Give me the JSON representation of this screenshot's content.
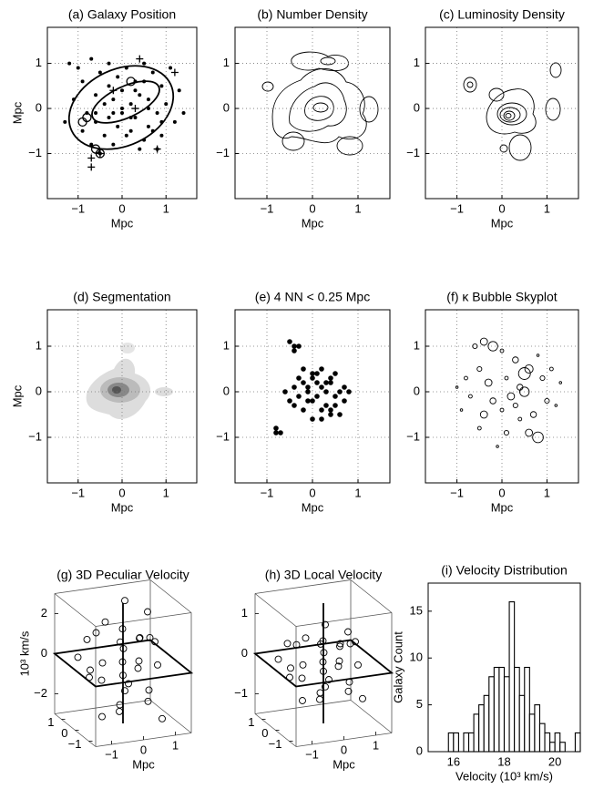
{
  "chart_data": [
    {
      "type": "scatter",
      "title": "(a)  Galaxy  Position",
      "xlabel": "Mpc",
      "ylabel": "Mpc",
      "xlim": [
        -1.7,
        1.7
      ],
      "ylim": [
        -2,
        1.8
      ],
      "xticks": [
        {
          "value": -1,
          "label": "−1"
        },
        0,
        1
      ],
      "yticks": [
        {
          "value": -1,
          "label": "−1"
        },
        0,
        1
      ],
      "grid": true,
      "series": [
        {
          "marker": "dot",
          "color": "#000000",
          "x": [
            -1.2,
            -1.0,
            -0.9,
            -0.7,
            -0.5,
            -0.3,
            -0.1,
            0.1,
            0.3,
            0.5,
            0.7,
            0.9,
            1.1,
            1.3,
            -1.1,
            -0.8,
            -0.6,
            -0.4,
            -0.2,
            0.0,
            0.2,
            0.4,
            0.6,
            0.8,
            1.0,
            1.2,
            -0.9,
            -0.6,
            -0.3,
            0.0,
            0.3,
            0.6,
            0.9,
            -0.7,
            -0.4,
            -0.1,
            0.2,
            0.5,
            0.8,
            -0.5,
            -0.2,
            0.1,
            0.4,
            0.7,
            -0.3,
            0.0,
            0.3,
            -0.6,
            0.5,
            1.4,
            -1.3,
            0.9,
            -0.2,
            0.2,
            0.6
          ],
          "y": [
            1.0,
            0.9,
            0.6,
            1.1,
            0.8,
            1.0,
            0.7,
            0.9,
            0.6,
            1.0,
            0.8,
            0.5,
            0.9,
            0.4,
            0.2,
            -0.1,
            0.3,
            0.1,
            0.2,
            -0.1,
            0.1,
            0.3,
            0.2,
            -0.1,
            0.1,
            -0.3,
            -0.5,
            -0.3,
            -0.2,
            0.0,
            -0.2,
            -0.4,
            -0.6,
            -0.8,
            -0.6,
            -0.4,
            -0.5,
            -0.7,
            -0.9,
            -1.0,
            -0.8,
            -0.6,
            -0.9,
            -0.5,
            0.5,
            0.4,
            0.4,
            -0.1,
            0.6,
            -0.1,
            -0.3,
            -0.3,
            -0.1,
            -0.2,
            0.0
          ]
        },
        {
          "marker": "plus",
          "color": "#000000",
          "x": [
            0.4,
            -0.2,
            -0.5,
            0.3,
            -0.7,
            1.2,
            0.8,
            -0.7
          ],
          "y": [
            1.1,
            0.4,
            -1.0,
            0.0,
            -1.1,
            0.8,
            -0.9,
            -1.3
          ]
        },
        {
          "marker": "circle",
          "color": "#000000",
          "x": [
            -0.9,
            -0.8,
            -0.5,
            -0.6,
            0.2
          ],
          "y": [
            -0.3,
            -0.2,
            -1.0,
            -0.9,
            0.6
          ]
        }
      ]
    },
    {
      "type": "contour",
      "title": "(b)  Number Density",
      "xlabel": "Mpc",
      "xlim": [
        -1.7,
        1.7
      ],
      "ylim": [
        -2,
        1.8
      ],
      "xticks": [
        {
          "value": -1,
          "label": "−1"
        },
        0,
        1
      ],
      "yticks": [
        {
          "value": -1,
          "label": "−1"
        },
        0,
        1
      ],
      "grid": true
    },
    {
      "type": "contour",
      "title": "(c)  Luminosity Density",
      "xlabel": "Mpc",
      "xlim": [
        -1.7,
        1.7
      ],
      "ylim": [
        -2,
        1.8
      ],
      "xticks": [
        {
          "value": -1,
          "label": "−1"
        },
        0,
        1
      ],
      "yticks": [
        {
          "value": -1,
          "label": "−1"
        },
        0,
        1
      ],
      "grid": true
    },
    {
      "type": "image",
      "title": "(d)  Segmentation",
      "xlabel": "Mpc",
      "ylabel": "Mpc",
      "xlim": [
        -1.7,
        1.7
      ],
      "ylim": [
        -2,
        1.8
      ],
      "xticks": [
        {
          "value": -1,
          "label": "−1"
        },
        0,
        1
      ],
      "yticks": [
        {
          "value": -1,
          "label": "−1"
        },
        0,
        1
      ],
      "grid": true
    },
    {
      "type": "scatter",
      "title": "(e)  4 NN < 0.25 Mpc",
      "xlabel": "Mpc",
      "xlim": [
        -1.7,
        1.7
      ],
      "ylim": [
        -2,
        1.8
      ],
      "xticks": [
        {
          "value": -1,
          "label": "−1"
        },
        0,
        1
      ],
      "yticks": [
        {
          "value": -1,
          "label": "−1"
        },
        0,
        1
      ],
      "grid": true,
      "series": [
        {
          "marker": "bigdot",
          "color": "#000000",
          "x": [
            -0.5,
            -0.4,
            -0.3,
            -0.4,
            -0.8,
            -0.7,
            -0.8,
            -0.6,
            -0.4,
            -0.3,
            -0.2,
            -0.1,
            0.0,
            0.1,
            0.2,
            0.3,
            0.4,
            0.5,
            0.6,
            0.7,
            0.8,
            -0.5,
            -0.3,
            -0.1,
            0.1,
            0.3,
            0.5,
            0.7,
            -0.4,
            -0.2,
            0.0,
            0.2,
            0.4,
            0.6,
            -0.2,
            0.0,
            0.2,
            0.4,
            0.3,
            0.1,
            -0.1,
            0.5,
            0.0,
            0.2,
            0.4
          ],
          "y": [
            1.1,
            1.0,
            1.0,
            0.9,
            -0.8,
            -0.9,
            -0.9,
            0.0,
            0.1,
            -0.1,
            0.2,
            0.0,
            0.3,
            -0.1,
            0.1,
            0.0,
            0.2,
            -0.1,
            0.0,
            -0.2,
            0.0,
            -0.2,
            0.3,
            -0.2,
            0.4,
            -0.3,
            0.4,
            0.1,
            -0.3,
            -0.4,
            -0.2,
            -0.4,
            -0.5,
            -0.5,
            0.5,
            0.4,
            0.5,
            0.3,
            0.2,
            0.2,
            0.1,
            -0.3,
            -0.6,
            -0.6,
            -0.4
          ]
        }
      ]
    },
    {
      "type": "scatter",
      "title": "(f)  κ Bubble Skyplot",
      "xlabel": "Mpc",
      "xlim": [
        -1.7,
        1.7
      ],
      "ylim": [
        -2,
        1.8
      ],
      "xticks": [
        {
          "value": -1,
          "label": "−1"
        },
        0,
        1
      ],
      "yticks": [
        {
          "value": -1,
          "label": "−1"
        },
        0,
        1
      ],
      "grid": true,
      "series": [
        {
          "marker": "bubble",
          "color": "#000000",
          "x": [
            -0.6,
            -0.4,
            -0.2,
            0.0,
            0.3,
            0.5,
            0.8,
            1.1,
            -1.0,
            -0.8,
            -0.5,
            -0.3,
            0.1,
            0.4,
            0.6,
            0.9,
            1.3,
            -0.7,
            -0.2,
            0.2,
            0.5,
            1.0,
            -0.9,
            -0.4,
            0.0,
            0.3,
            0.7,
            1.2,
            -0.5,
            0.1,
            0.6,
            0.8,
            -0.1,
            0.4
          ],
          "y": [
            1.0,
            1.1,
            1.0,
            0.9,
            0.7,
            0.4,
            0.8,
            0.5,
            0.1,
            0.3,
            0.5,
            0.2,
            0.3,
            0.1,
            0.5,
            0.3,
            0.2,
            -0.1,
            -0.2,
            -0.1,
            0.0,
            -0.2,
            -0.4,
            -0.5,
            -0.4,
            -0.3,
            -0.5,
            -0.3,
            -0.8,
            -0.9,
            -0.9,
            -1.0,
            -1.2,
            -0.6
          ],
          "sizes": [
            4,
            6,
            8,
            3,
            5,
            10,
            2,
            3,
            2,
            3,
            4,
            6,
            3,
            5,
            7,
            4,
            2,
            3,
            5,
            6,
            8,
            4,
            2,
            6,
            3,
            4,
            5,
            2,
            3,
            4,
            6,
            9,
            2,
            3
          ]
        }
      ]
    },
    {
      "type": "scatter3d",
      "title": "(g) 3D Peculiar Velocity",
      "xlabel": "Mpc",
      "zlabel": "10³ km/s",
      "xlim": [
        -1.5,
        1.5
      ],
      "ylim": [
        -1.5,
        1.5
      ],
      "zlim": [
        -3,
        3
      ],
      "xticks": [
        {
          "value": -1,
          "label": "−1"
        },
        0,
        1
      ],
      "yticks": [
        {
          "value": -1,
          "label": "−1"
        },
        0,
        1
      ],
      "zticks": [
        {
          "value": -2,
          "label": "−2"
        },
        0,
        2
      ],
      "x": [
        -1.2,
        -0.8,
        -0.5,
        -0.2,
        0.1,
        0.4,
        0.7,
        1.0,
        1.3,
        -1.0,
        -0.6,
        -0.3,
        0.0,
        0.3,
        0.6,
        0.9,
        -1.1,
        -0.7,
        -0.4,
        0.2,
        0.5,
        0.8,
        1.1,
        -0.9,
        -0.1,
        0.4,
        0.0,
        -0.5,
        0.6,
        0.3
      ],
      "y": [
        0.5,
        -0.3,
        0.8,
        -0.6,
        0.2,
        -0.9,
        0.4,
        -0.2,
        0.7,
        -0.8,
        0.1,
        0.6,
        -0.4,
        0.9,
        -0.5,
        0.3,
        -0.1,
        1.0,
        -0.7,
        0.5,
        0.0,
        -1.0,
        0.6,
        0.3,
        -0.2,
        0.8,
        0.0,
        -0.9,
        0.2,
        -0.4
      ],
      "z": [
        0.3,
        -0.5,
        1.2,
        -1.0,
        0.6,
        -1.5,
        0.9,
        -0.2,
        0.4,
        -2.0,
        0.1,
        1.8,
        -0.8,
        0.5,
        -1.2,
        2.2,
        -0.4,
        0.8,
        -1.6,
        1.4,
        0.0,
        -2.4,
        0.7,
        -0.3,
        0.2,
        2.6,
        -0.6,
        -1.8,
        1.0,
        -0.1
      ]
    },
    {
      "type": "scatter3d",
      "title": "(h) 3D Local Velocity",
      "xlabel": "Mpc",
      "xlim": [
        -1.5,
        1.5
      ],
      "ylim": [
        -1.5,
        1.5
      ],
      "zlim": [
        -1.5,
        1.5
      ],
      "xticks": [
        {
          "value": -1,
          "label": "−1"
        },
        0,
        1
      ],
      "yticks": [
        {
          "value": -1,
          "label": "−1"
        },
        0,
        1
      ],
      "zticks": [
        {
          "value": -1,
          "label": "−1"
        },
        0,
        1
      ],
      "x": [
        -1.2,
        -0.8,
        -0.5,
        -0.2,
        0.1,
        0.4,
        0.7,
        1.0,
        1.3,
        -1.0,
        -0.6,
        -0.3,
        0.0,
        0.3,
        0.6,
        0.9,
        -1.1,
        -0.7,
        -0.4,
        0.2,
        0.5,
        0.8,
        1.1,
        -0.9,
        -0.1,
        0.4,
        0.0,
        -0.5,
        0.6,
        0.3
      ],
      "y": [
        0.5,
        -0.3,
        0.8,
        -0.6,
        0.2,
        -0.9,
        0.4,
        -0.2,
        0.7,
        -0.8,
        0.1,
        0.6,
        -0.4,
        0.9,
        -0.5,
        0.3,
        -0.1,
        1.0,
        -0.7,
        0.5,
        0.0,
        -1.0,
        0.6,
        0.3,
        -0.2,
        0.8,
        0.0,
        -0.9,
        0.2,
        -0.4
      ],
      "z": [
        0.1,
        -0.2,
        0.3,
        -0.4,
        0.2,
        -0.5,
        0.3,
        -0.1,
        0.2,
        -0.6,
        0.0,
        0.5,
        -0.3,
        0.2,
        -0.4,
        0.6,
        -0.2,
        0.3,
        -0.5,
        0.4,
        0.0,
        -0.7,
        0.2,
        -0.1,
        0.1,
        0.7,
        -0.2,
        -0.6,
        0.3,
        0.0
      ]
    },
    {
      "type": "histogram",
      "title": "(i) Velocity Distribution",
      "xlabel": "Velocity (10³ km/s)",
      "ylabel": "Galaxy Count",
      "xlim": [
        15,
        21
      ],
      "ylim": [
        0,
        18
      ],
      "xticks": [
        16,
        18,
        20
      ],
      "yticks": [
        0,
        5,
        10,
        15
      ],
      "color": "#ffffff",
      "bins": [
        15.8,
        16.0,
        16.2,
        16.4,
        16.6,
        16.8,
        17.0,
        17.2,
        17.4,
        17.6,
        17.8,
        18.0,
        18.2,
        18.4,
        18.6,
        18.8,
        19.0,
        19.2,
        19.4,
        19.6,
        19.8,
        20.0,
        20.2,
        20.4,
        20.6,
        20.8,
        21.0
      ],
      "counts": [
        2,
        2,
        0,
        2,
        2,
        4,
        5,
        6,
        8,
        9,
        9,
        8,
        16,
        9,
        6,
        9,
        4,
        5,
        3,
        2,
        1,
        2,
        1,
        0,
        0,
        2
      ]
    }
  ]
}
